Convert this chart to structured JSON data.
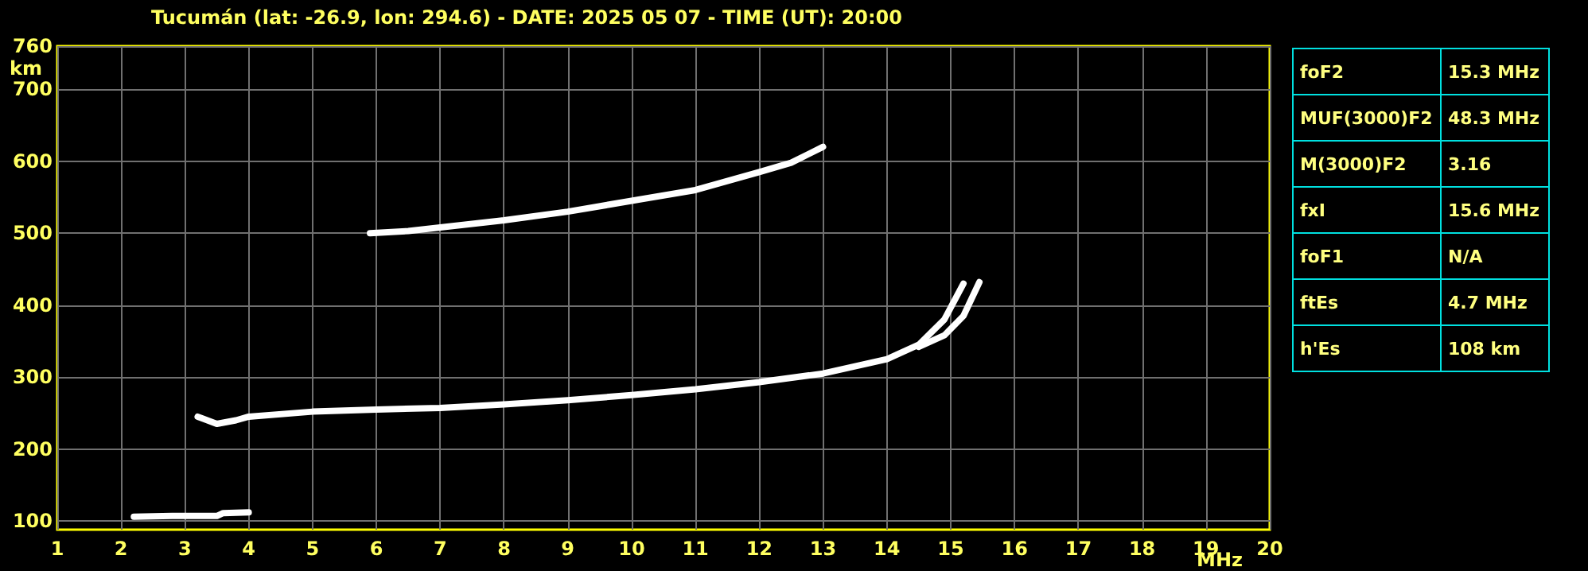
{
  "chart_data": {
    "type": "line",
    "title": "Tucumán (lat: -26.9, lon: 294.6) - DATE: 2025 05 07 - TIME (UT): 20:00",
    "xlabel": "MHz",
    "ylabel": "km",
    "series": [
      {
        "color": "#ffffff",
        "x": [
          3.2,
          3.5,
          3.8,
          4,
          5,
          6,
          7,
          8,
          9,
          10,
          11,
          12,
          13,
          14,
          14.5,
          14.9,
          15.2
        ],
        "values": [
          245,
          235,
          240,
          245,
          252,
          255,
          257,
          262,
          268,
          275,
          283,
          293,
          305,
          325,
          345,
          380,
          430
        ]
      },
      {
        "color": "#ffffff",
        "x": [
          14.5,
          14.9,
          15.2,
          15.45
        ],
        "values": [
          342,
          358,
          385,
          432
        ]
      },
      {
        "color": "#ffffff",
        "x": [
          5.9,
          6.5,
          7,
          8,
          9,
          10,
          11,
          12,
          12.5,
          13
        ],
        "values": [
          500,
          503,
          508,
          518,
          530,
          545,
          560,
          585,
          598,
          620
        ]
      },
      {
        "color": "#ffffff",
        "x": [
          2.2,
          2.8,
          3.5,
          3.6,
          4.0
        ],
        "values": [
          106,
          107,
          107,
          111,
          112
        ]
      }
    ],
    "xlim": [
      1,
      20
    ],
    "xticks": [
      1,
      2,
      3,
      4,
      5,
      6,
      7,
      8,
      9,
      10,
      11,
      12,
      13,
      14,
      15,
      16,
      17,
      18,
      19,
      20
    ],
    "ylim": [
      88,
      760
    ],
    "yticks": [
      100,
      200,
      300,
      400,
      500,
      600,
      700,
      760
    ],
    "grid": true,
    "marker": "none",
    "line_style": "solid",
    "annotations": [
      "foF2",
      "15.3 MHz",
      "MUF(3000)F2",
      "48.3 MHz",
      "M(3000)F2",
      "3.16",
      "fxI",
      "15.6 MHz",
      "foF1",
      "N/A",
      "ftEs",
      "4.7 MHz",
      "h'Es",
      "108 km"
    ]
  }
}
